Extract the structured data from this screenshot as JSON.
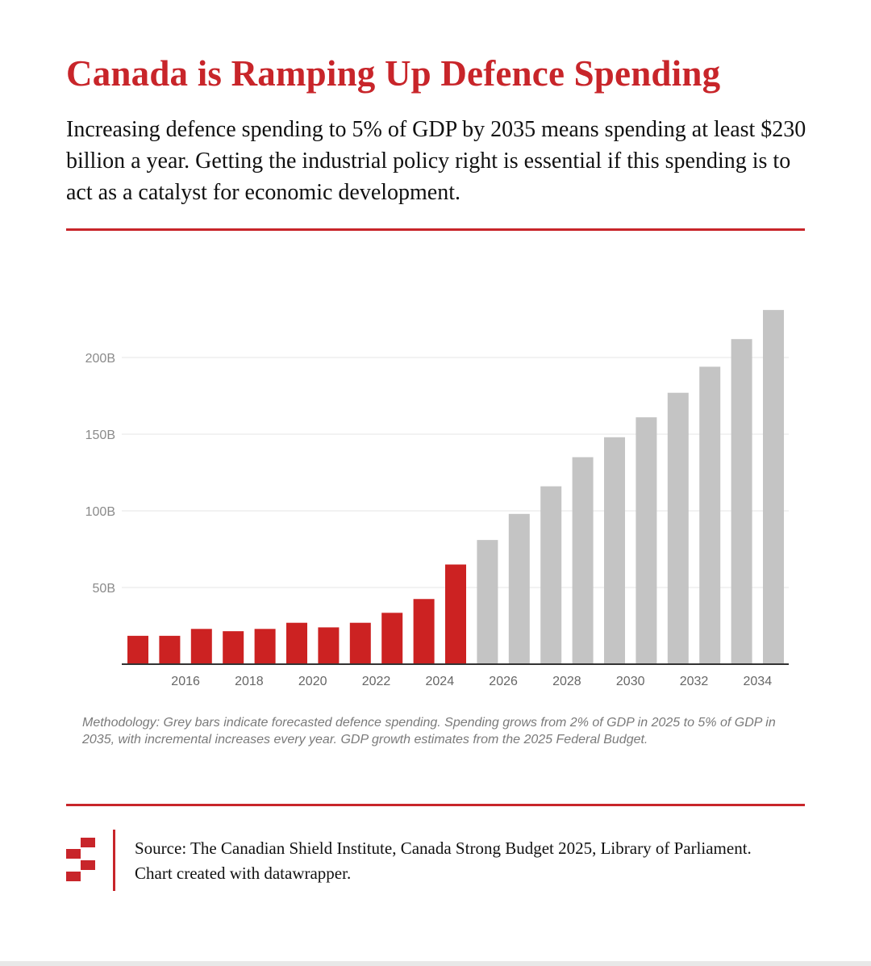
{
  "header": {
    "title": "Canada is Ramping Up Defence Spending",
    "subtitle": "Increasing defence spending to 5% of GDP by 2035 means spending at least $230 billion a year. Getting the industrial policy right is essential if this spending is to act as a catalyst for economic development."
  },
  "colors": {
    "accent": "#c8252a",
    "actual_bar": "#cc2222",
    "forecast_bar": "#c4c4c4",
    "gridline": "#e6e6e6",
    "tick_text": "#8a8a8a"
  },
  "chart_data": {
    "type": "bar",
    "title": "",
    "xlabel": "",
    "ylabel": "",
    "categories": [
      "2015",
      "2016",
      "2017",
      "2018",
      "2019",
      "2020",
      "2021",
      "2022",
      "2023",
      "2024",
      "2025",
      "2026",
      "2027",
      "2028",
      "2029",
      "2030",
      "2031",
      "2032",
      "2033",
      "2034",
      "2035"
    ],
    "series": [
      {
        "values": [
          18.5,
          18.5,
          23,
          21.5,
          23,
          27,
          24,
          27,
          33.5,
          42.5,
          65,
          81,
          98,
          116,
          135,
          148,
          161,
          177,
          194,
          212,
          231
        ]
      }
    ],
    "bar_kind": [
      "actual",
      "actual",
      "actual",
      "actual",
      "actual",
      "actual",
      "actual",
      "actual",
      "actual",
      "actual",
      "actual",
      "forecast",
      "forecast",
      "forecast",
      "forecast",
      "forecast",
      "forecast",
      "forecast",
      "forecast",
      "forecast",
      "forecast"
    ],
    "x_tick_labels": [
      "2016",
      "2018",
      "2020",
      "2022",
      "2024",
      "2026",
      "2028",
      "2030",
      "2032",
      "2034"
    ],
    "y_ticks": [
      50,
      100,
      150,
      200
    ],
    "y_tick_labels": [
      "50B",
      "100B",
      "150B",
      "200B"
    ],
    "ylim": [
      0,
      231
    ],
    "grid": true,
    "legend": "none"
  },
  "notes": {
    "methodology": "Methodology: Grey bars indicate forecasted defence spending. Spending  grows from 2% of GDP in 2025 to 5% of GDP in 2035, with incremental increases every year. GDP growth estimates from the 2025 Federal Budget."
  },
  "footer": {
    "source": "Source: The Canadian Shield Institute, Canada Strong Budget 2025, Library of Parliament. Chart created with datawrapper.",
    "logo_icon": "canadian-shield-institute-logo-icon"
  }
}
